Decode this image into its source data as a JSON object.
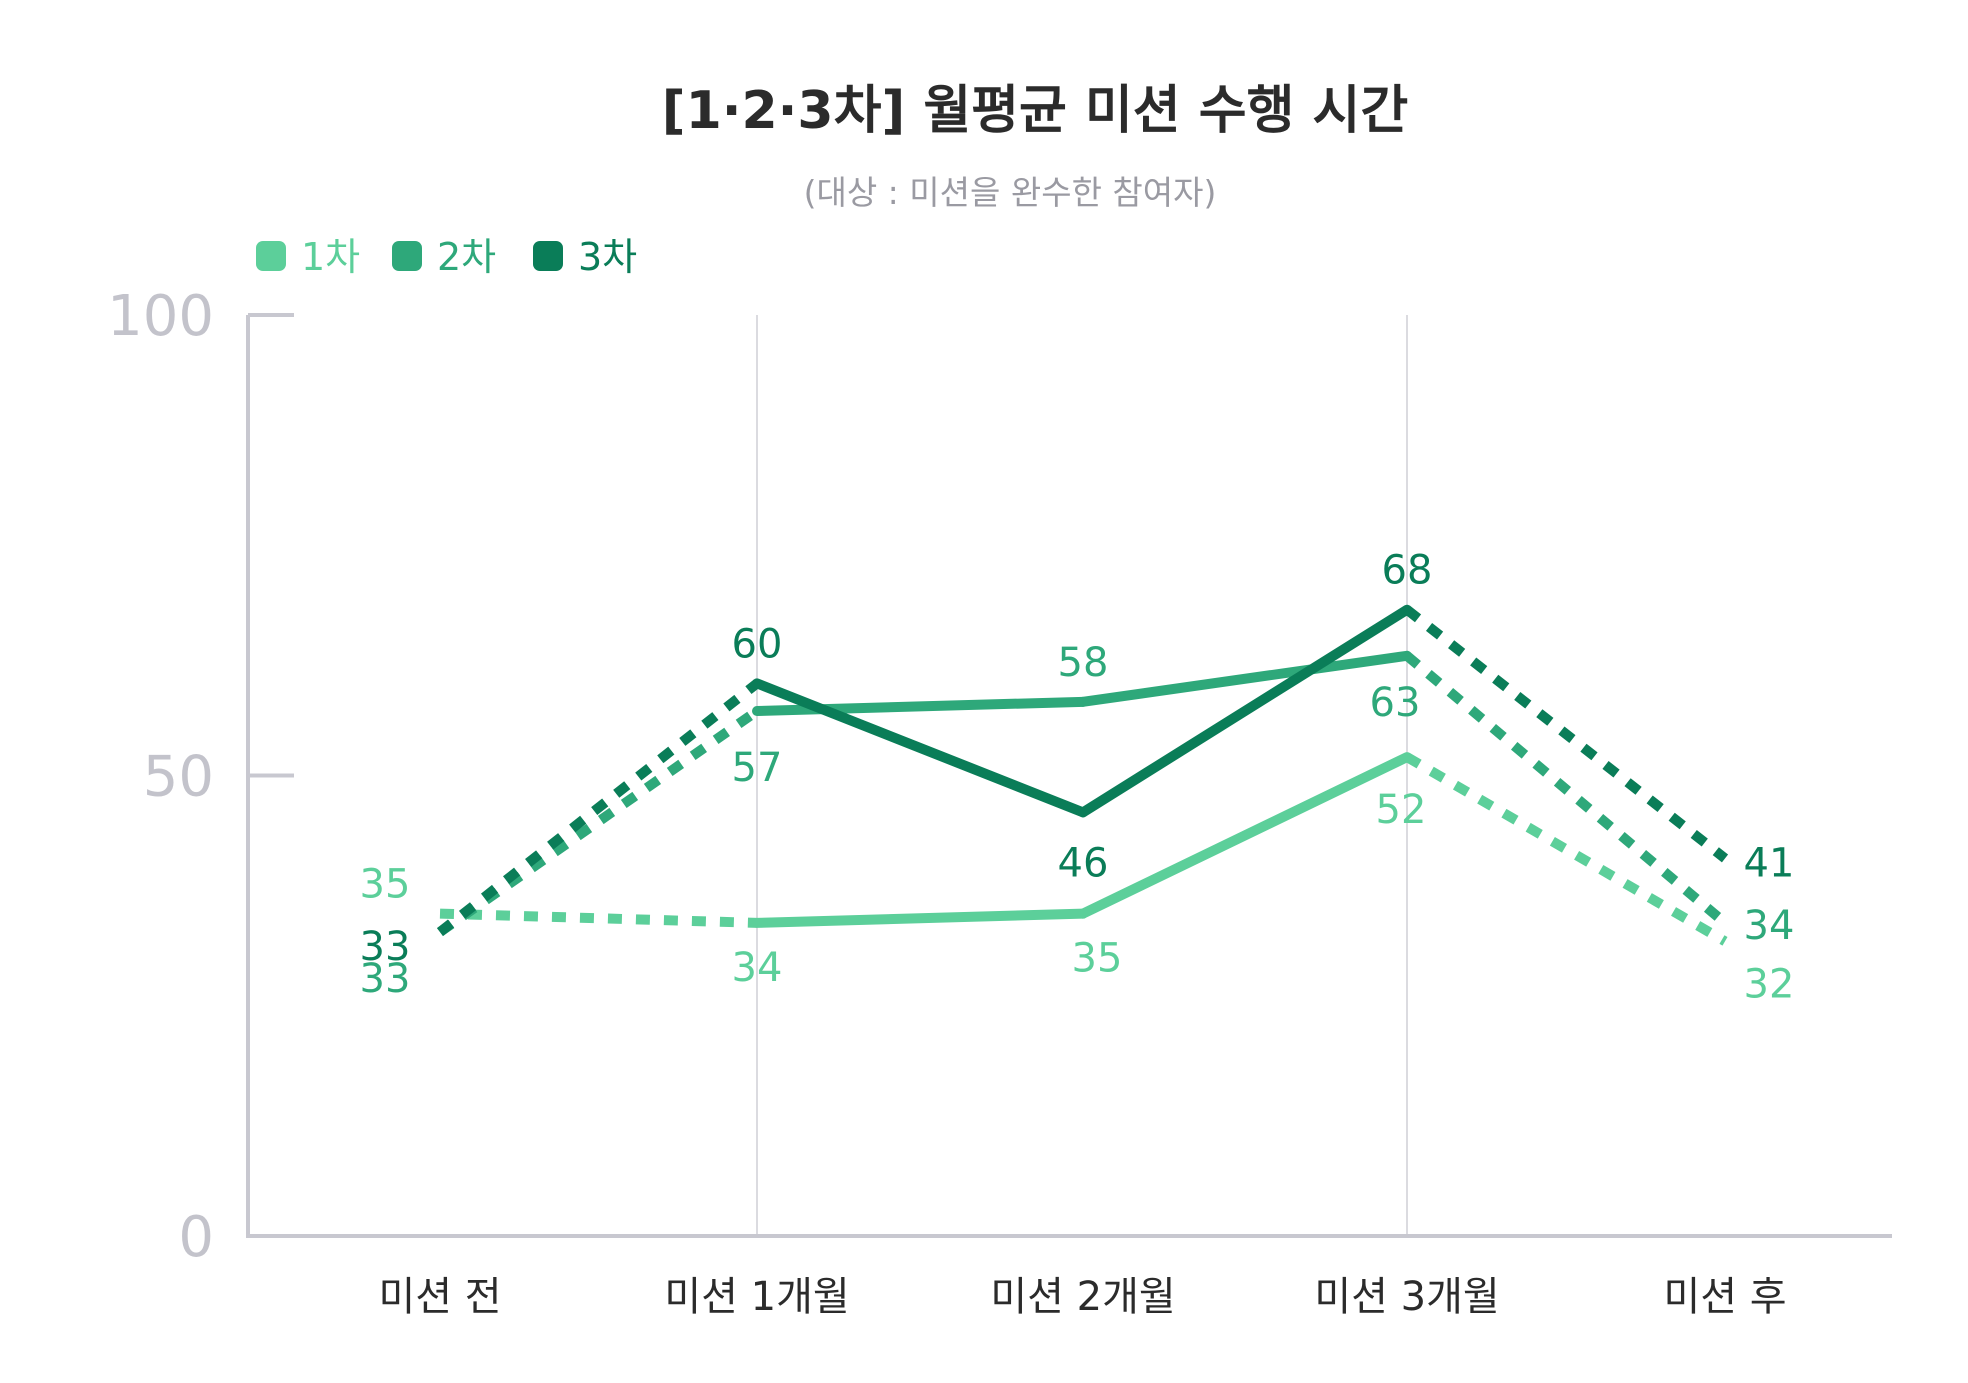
{
  "chart_data": {
    "type": "line",
    "title": "[1·2·3차] 월평균 미션 수행 시간",
    "subtitle": "(대상 : 미션을 완수한 참여자)",
    "categories": [
      "미션 전",
      "미션 1개월",
      "미션 2개월",
      "미션 3개월",
      "미션 후"
    ],
    "ylim": [
      0,
      100
    ],
    "yticks": [
      0,
      50,
      100
    ],
    "legend_position": "top-left",
    "grid": "vertical lines at 미션 1개월 and 미션 3개월",
    "line_style_note": "solid between 미션 1개월 and 미션 3개월; dotted for 미션 전→미션 1개월 and 미션 3개월→미션 후",
    "series": [
      {
        "name": "1차",
        "color": "#5ccf9a",
        "values": [
          35,
          34,
          35,
          52,
          32
        ]
      },
      {
        "name": "2차",
        "color": "#2ea87a",
        "values": [
          33,
          57,
          58,
          63,
          34
        ]
      },
      {
        "name": "3차",
        "color": "#0a7d58",
        "values": [
          33,
          60,
          46,
          68,
          41
        ]
      }
    ]
  },
  "colors": {
    "axis": "#c8c8d0",
    "gridline": "#cfcfd6",
    "title": "#2b2b2b",
    "subtitle": "#9a9aa2",
    "ytick": "#c3c3cb"
  }
}
